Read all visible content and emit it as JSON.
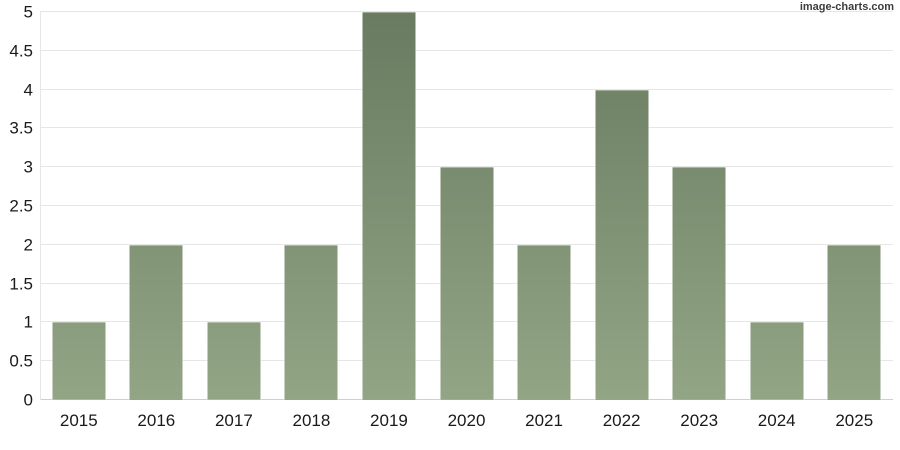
{
  "watermark": "image-charts.com",
  "chart_data": {
    "type": "bar",
    "title": "",
    "xlabel": "",
    "ylabel": "",
    "categories": [
      "2015",
      "2016",
      "2017",
      "2018",
      "2019",
      "2020",
      "2021",
      "2022",
      "2023",
      "2024",
      "2025"
    ],
    "values": [
      1,
      2,
      1,
      2,
      5,
      3,
      2,
      4,
      3,
      1,
      2
    ],
    "ylim": [
      0,
      5
    ],
    "ytick_step": 0.5,
    "yticks": [
      "0",
      "0.5",
      "1",
      "1.5",
      "2",
      "2.5",
      "3",
      "3.5",
      "4",
      "4.5",
      "5"
    ],
    "grid": true,
    "legend": null,
    "colors": {
      "bar_gradient_top": "#697b60",
      "bar_gradient_bottom": "#92a585",
      "gridline": "#e6e6e6",
      "baseline": "#cfcfcf",
      "axis_line": "#e6e6e6",
      "label_text": "#1a1a1a",
      "watermark_text": "#3d3d3d",
      "background": "#ffffff"
    }
  }
}
